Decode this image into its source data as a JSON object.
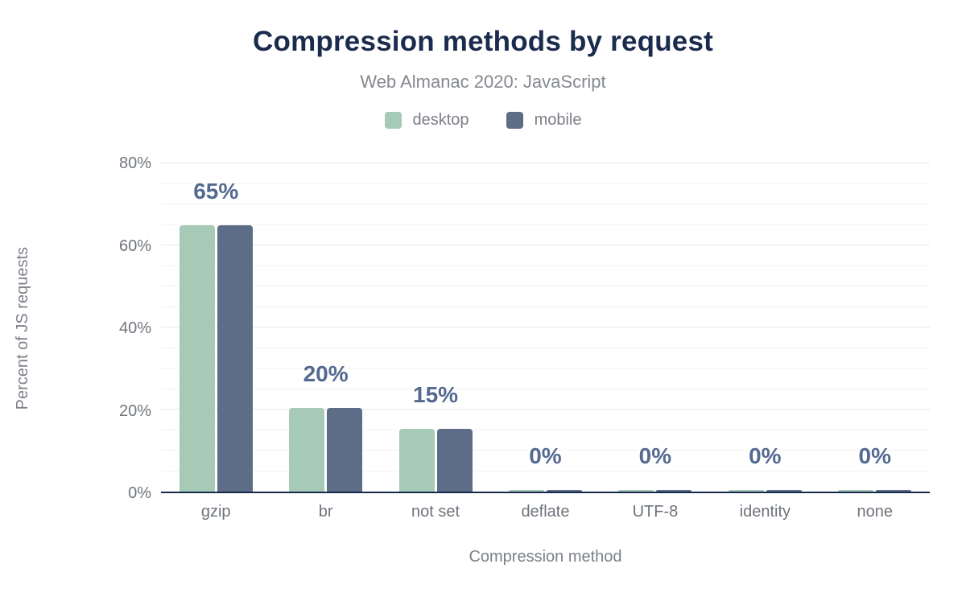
{
  "page": {
    "background": "#ffffff"
  },
  "header": {
    "title": "Compression methods by request",
    "subtitle": "Web Almanac 2020: JavaScript"
  },
  "chart_data": {
    "type": "bar",
    "title": "Compression methods by request",
    "subtitle": "Web Almanac 2020: JavaScript",
    "categories": [
      "gzip",
      "br",
      "not set",
      "deflate",
      "UTF-8",
      "identity",
      "none"
    ],
    "series": [
      {
        "name": "desktop",
        "color": "#a6cab6",
        "values": [
          64.5,
          20,
          15,
          0,
          0,
          0,
          0
        ]
      },
      {
        "name": "mobile",
        "color": "#5d6c87",
        "values": [
          64.5,
          20,
          15,
          0,
          0,
          0,
          0
        ]
      }
    ],
    "data_labels": [
      "65%",
      "20%",
      "15%",
      "0%",
      "0%",
      "0%",
      "0%"
    ],
    "xlabel": "Compression method",
    "ylabel": "Percent of JS requests",
    "ylim": [
      0,
      80
    ],
    "yticks": [
      {
        "value": 0,
        "label": "0%"
      },
      {
        "value": 20,
        "label": "20%"
      },
      {
        "value": 40,
        "label": "40%"
      },
      {
        "value": 60,
        "label": "60%"
      },
      {
        "value": 80,
        "label": "80%"
      }
    ],
    "grid": {
      "visible": true,
      "minor_step": 5,
      "major_step": 20
    },
    "legend_position": "top"
  },
  "colors": {
    "title": "#1b2b4d",
    "subtitle": "#85898f",
    "legend_text": "#7b7f86",
    "tick_label": "#70757d",
    "axis_title": "#7c8188",
    "data_label": "#546a90",
    "axis_line": "#152a4a",
    "grid_major": "#e6e6e6",
    "grid_minor": "#f3f3f3",
    "desktop_bar": "#a6cab6",
    "mobile_bar": "#5d6c87",
    "background": "#ffffff"
  }
}
